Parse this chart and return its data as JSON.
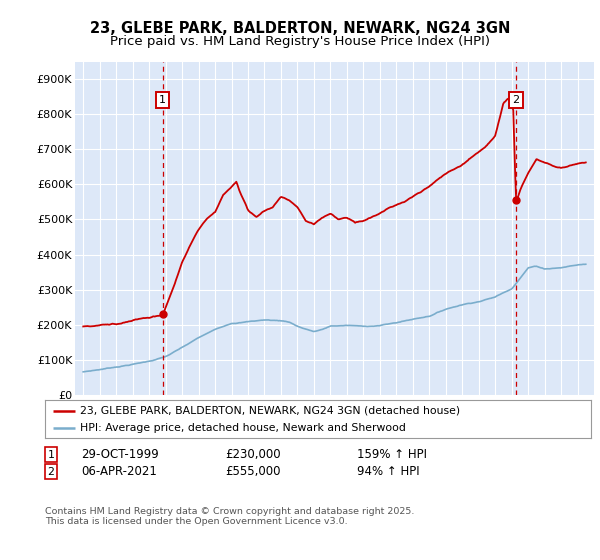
{
  "title": "23, GLEBE PARK, BALDERTON, NEWARK, NG24 3GN",
  "subtitle": "Price paid vs. HM Land Registry's House Price Index (HPI)",
  "ylim": [
    0,
    950000
  ],
  "yticks": [
    0,
    100000,
    200000,
    300000,
    400000,
    500000,
    600000,
    700000,
    800000,
    900000
  ],
  "ytick_labels": [
    "£0",
    "£100K",
    "£200K",
    "£300K",
    "£400K",
    "£500K",
    "£600K",
    "£700K",
    "£800K",
    "£900K"
  ],
  "xlim_min": 1994.5,
  "xlim_max": 2026.0,
  "sale1_date": 1999.83,
  "sale1_price": 230000,
  "sale1_label": "1",
  "sale2_date": 2021.27,
  "sale2_price": 555000,
  "sale2_label": "2",
  "legend_line1": "23, GLEBE PARK, BALDERTON, NEWARK, NG24 3GN (detached house)",
  "legend_line2": "HPI: Average price, detached house, Newark and Sherwood",
  "footer": "Contains HM Land Registry data © Crown copyright and database right 2025.\nThis data is licensed under the Open Government Licence v3.0.",
  "red_color": "#cc0000",
  "blue_color": "#7aadcc",
  "bg_color": "#dde8f8",
  "grid_color": "#ffffff",
  "title_fontsize": 10.5,
  "subtitle_fontsize": 9.5
}
